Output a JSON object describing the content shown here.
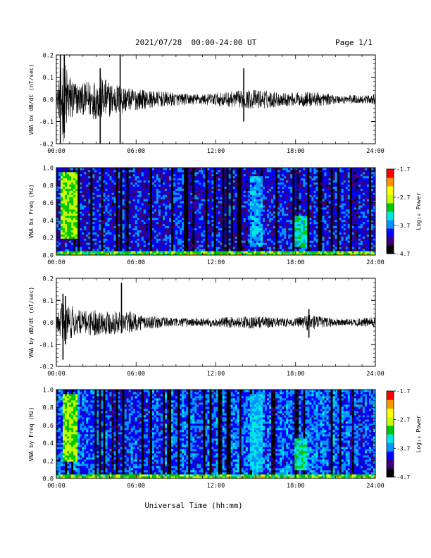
{
  "header": {
    "title": "2021/07/28  00:00-24:00 UT",
    "page": "Page 1/1"
  },
  "colors": {
    "background": "#ffffff",
    "trace": "#000000",
    "colormap": [
      "#000000",
      "#3a0073",
      "#0000ff",
      "#0096ff",
      "#00e6e6",
      "#00c800",
      "#c8ff00",
      "#ffff00",
      "#ff9600",
      "#ff0000"
    ]
  },
  "chart_data": [
    {
      "type": "line",
      "ylabel": "VNA bx dB/dt (nT/sec)",
      "ylim": [
        -0.2,
        0.2
      ],
      "yticks": [
        "-0.2",
        "-0.1",
        "0.0",
        "0.1",
        "0.2"
      ],
      "ytick_values": [
        -0.2,
        -0.1,
        0.0,
        0.1,
        0.2
      ],
      "xlim": [
        0,
        24
      ],
      "xticks": [
        "00:00",
        "06:00",
        "12:00",
        "18:00",
        "24:00"
      ],
      "xtick_values": [
        0,
        6,
        12,
        18,
        24
      ],
      "series": [
        {
          "x": [
            0,
            0.5,
            1,
            1.5,
            2,
            2.5,
            3,
            3.5,
            4,
            4.5,
            5,
            5.5,
            6,
            7,
            8,
            9,
            10,
            11,
            12,
            13,
            14,
            15,
            16,
            17,
            18,
            19,
            20,
            21,
            22,
            23,
            24
          ],
          "amplitude": [
            0.02,
            0.2,
            0.12,
            0.08,
            0.07,
            0.09,
            0.09,
            0.1,
            0.08,
            0.07,
            0.07,
            0.05,
            0.05,
            0.04,
            0.035,
            0.03,
            0.025,
            0.025,
            0.03,
            0.035,
            0.04,
            0.045,
            0.04,
            0.03,
            0.03,
            0.035,
            0.03,
            0.02,
            0.02,
            0.02,
            0.02
          ]
        }
      ],
      "spikes": [
        {
          "x": 0.3,
          "ymin": -0.2,
          "ymax": 0.2
        },
        {
          "x": 0.6,
          "ymin": -0.15,
          "ymax": 0.2
        },
        {
          "x": 3.3,
          "ymin": -0.2,
          "ymax": 0.14
        },
        {
          "x": 4.8,
          "ymin": -0.2,
          "ymax": 0.2
        },
        {
          "x": 14.1,
          "ymin": -0.1,
          "ymax": 0.14
        }
      ]
    },
    {
      "type": "heatmap",
      "ylabel": "VNA bx Freq (Hz)",
      "ylim": [
        0.0,
        1.0
      ],
      "yticks": [
        "0.0",
        "0.2",
        "0.4",
        "0.6",
        "0.8",
        "1.0"
      ],
      "ytick_values": [
        0.0,
        0.2,
        0.4,
        0.6,
        0.8,
        1.0
      ],
      "xlim": [
        0,
        24
      ],
      "xticks": [
        "00:00",
        "06:00",
        "12:00",
        "18:00",
        "24:00"
      ],
      "xtick_values": [
        0,
        6,
        12,
        18,
        24
      ],
      "colorbar": {
        "label": "Log₁₀ Power",
        "range": [
          -4.7,
          -1.7
        ],
        "ticks": [
          "-1.7",
          "-2.7",
          "-3.7",
          "-4.7"
        ],
        "tick_values": [
          -1.7,
          -2.7,
          -3.7,
          -4.7
        ]
      },
      "background_level": -4.0,
      "features": [
        {
          "x0": 0.4,
          "x1": 1.6,
          "f0": 0.2,
          "f1": 0.95,
          "level": -2.9
        },
        {
          "x0": 0.0,
          "x1": 24.0,
          "f0": 0.0,
          "f1": 0.05,
          "level": -3.0
        },
        {
          "x0": 14.5,
          "x1": 15.5,
          "f0": 0.1,
          "f1": 0.9,
          "level": -3.6
        },
        {
          "x0": 18.0,
          "x1": 18.8,
          "f0": 0.1,
          "f1": 0.45,
          "level": -3.3
        }
      ]
    },
    {
      "type": "line",
      "ylabel": "VNA by dB/dt (nT/sec)",
      "ylim": [
        -0.2,
        0.2
      ],
      "yticks": [
        "-0.2",
        "-0.1",
        "0.0",
        "0.1",
        "0.2"
      ],
      "ytick_values": [
        -0.2,
        -0.1,
        0.0,
        0.1,
        0.2
      ],
      "xlim": [
        0,
        24
      ],
      "xticks": [
        "00:00",
        "06:00",
        "12:00",
        "18:00",
        "24:00"
      ],
      "xtick_values": [
        0,
        6,
        12,
        18,
        24
      ],
      "series": [
        {
          "x": [
            0,
            0.5,
            1,
            1.5,
            2,
            2.5,
            3,
            3.5,
            4,
            4.5,
            5,
            5.5,
            6,
            7,
            8,
            9,
            10,
            11,
            12,
            13,
            14,
            15,
            16,
            17,
            18,
            19,
            20,
            21,
            22,
            23,
            24
          ],
          "amplitude": [
            0.02,
            0.1,
            0.09,
            0.06,
            0.05,
            0.06,
            0.06,
            0.05,
            0.06,
            0.05,
            0.05,
            0.05,
            0.04,
            0.03,
            0.025,
            0.02,
            0.02,
            0.02,
            0.02,
            0.025,
            0.025,
            0.03,
            0.025,
            0.02,
            0.02,
            0.04,
            0.025,
            0.02,
            0.015,
            0.02,
            0.025
          ]
        }
      ],
      "spikes": [
        {
          "x": 0.5,
          "ymin": -0.17,
          "ymax": 0.13
        },
        {
          "x": 0.7,
          "ymin": -0.1,
          "ymax": 0.12
        },
        {
          "x": 4.9,
          "ymin": -0.05,
          "ymax": 0.18
        },
        {
          "x": 19.0,
          "ymin": -0.07,
          "ymax": 0.06
        }
      ]
    },
    {
      "type": "heatmap",
      "ylabel": "VNA by Freq (Hz)",
      "ylim": [
        0.0,
        1.0
      ],
      "yticks": [
        "0.0",
        "0.2",
        "0.4",
        "0.6",
        "0.8",
        "1.0"
      ],
      "ytick_values": [
        0.0,
        0.2,
        0.4,
        0.6,
        0.8,
        1.0
      ],
      "xlim": [
        0,
        24
      ],
      "xticks": [
        "00:00",
        "06:00",
        "12:00",
        "18:00",
        "24:00"
      ],
      "xtick_values": [
        0,
        6,
        12,
        18,
        24
      ],
      "colorbar": {
        "label": "Log₁₀ Power",
        "range": [
          -4.7,
          -1.7
        ],
        "ticks": [
          "-1.7",
          "-2.7",
          "-3.7",
          "-4.7"
        ],
        "tick_values": [
          -1.7,
          -2.7,
          -3.7,
          -4.7
        ]
      },
      "background_level": -3.8,
      "features": [
        {
          "x0": 0.5,
          "x1": 1.6,
          "f0": 0.2,
          "f1": 0.95,
          "level": -2.9
        },
        {
          "x0": 0.0,
          "x1": 24.0,
          "f0": 0.0,
          "f1": 0.05,
          "level": -3.0
        },
        {
          "x0": 14.5,
          "x1": 15.5,
          "f0": 0.1,
          "f1": 0.95,
          "level": -3.5
        },
        {
          "x0": 18.0,
          "x1": 18.8,
          "f0": 0.1,
          "f1": 0.45,
          "level": -3.3
        }
      ]
    }
  ],
  "xlabel": "Universal Time (hh:mm)"
}
